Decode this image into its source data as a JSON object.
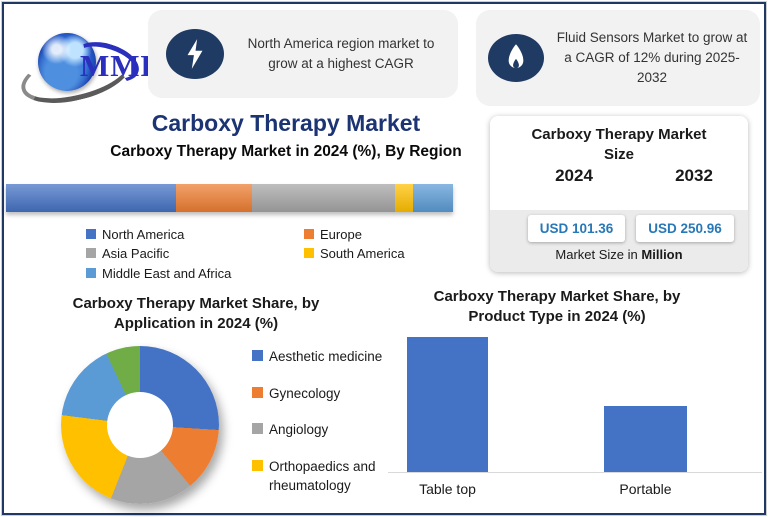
{
  "logo": {
    "text": "MMR"
  },
  "callouts": [
    {
      "icon": "lightning-bolt-icon",
      "text": "North America region market to grow at a highest CAGR"
    },
    {
      "icon": "flame-icon",
      "text": "Fluid Sensors Market to grow at a CAGR of 12% during 2025-2032"
    }
  ],
  "titles": {
    "main": "Carboxy Therapy Market"
  },
  "market_size": {
    "title": "Carboxy Therapy Market Size",
    "years": [
      "2024",
      "2032"
    ],
    "values": [
      "USD 101.36",
      "USD 250.96"
    ],
    "note_prefix": "Market Size in",
    "note_bold": "Million"
  },
  "palette": {
    "blue": "#4472C4",
    "orange": "#ED7D31",
    "gray": "#A5A5A5",
    "yellow": "#FFC000",
    "light_blue": "#5B9BD5",
    "green": "#70AD47",
    "navy_icon": "#1F3A63",
    "border_navy": "#1F3864",
    "title_navy": "#1c3473",
    "value_blue": "#2878B8",
    "callout_bg": "#F2F2F2"
  },
  "chart_data": [
    {
      "type": "bar",
      "variant": "stacked-horizontal",
      "title": "Carboxy Therapy Market in 2024 (%), By Region",
      "series": [
        {
          "name": "North America",
          "value": 38,
          "color": "#4472C4"
        },
        {
          "name": "Europe",
          "value": 17,
          "color": "#ED7D31"
        },
        {
          "name": "Asia Pacific",
          "value": 32,
          "color": "#A5A5A5"
        },
        {
          "name": "South America",
          "value": 4,
          "color": "#FFC000"
        },
        {
          "name": "Middle East and Africa",
          "value": 9,
          "color": "#5B9BD5"
        }
      ],
      "legend_position": "below",
      "axis_visible": false
    },
    {
      "type": "pie",
      "variant": "donut",
      "title": "Carboxy Therapy Market Share, by Application in 2024 (%)",
      "start_angle_deg": 0,
      "segments": [
        {
          "label": "Aesthetic medicine",
          "value": 26,
          "color": "#4472C4"
        },
        {
          "label": "Gynecology",
          "value": 13,
          "color": "#ED7D31"
        },
        {
          "label": "Angiology",
          "value": 17,
          "color": "#A5A5A5"
        },
        {
          "label": "Orthopaedics and rheumatology",
          "value": 21,
          "color": "#FFC000"
        },
        {
          "label": "",
          "value": 16,
          "color": "#5B9BD5"
        },
        {
          "label": "",
          "value": 7,
          "color": "#70AD47"
        }
      ],
      "legend_visible": [
        {
          "label": "Aesthetic medicine",
          "color": "#4472C4"
        },
        {
          "label": "Gynecology",
          "color": "#ED7D31"
        },
        {
          "label": "Angiology",
          "color": "#A5A5A5"
        },
        {
          "label": "Orthopaedics and rheumatology",
          "color": "#FFC000"
        }
      ],
      "legend_position": "right"
    },
    {
      "type": "bar",
      "title": "Carboxy Therapy  Market Share, by Product Type in 2024 (%)",
      "categories": [
        "Table top",
        "Portable"
      ],
      "values": [
        65,
        32
      ],
      "color": "#4472C4",
      "gridlines": false,
      "value_labels_visible": false
    }
  ]
}
